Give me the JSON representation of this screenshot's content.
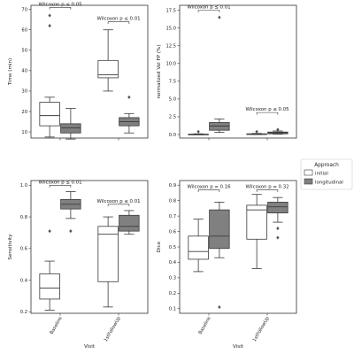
{
  "chart_data": [
    {
      "type": "box",
      "categories": [
        "Baseline",
        "1stFollowUp"
      ],
      "xlabel": "",
      "ylabel": "Time (min)",
      "ylim": [
        7,
        72
      ],
      "yticks": [
        10,
        20,
        30,
        40,
        50,
        60,
        70
      ],
      "show_xticklabels": false,
      "series": [
        {
          "name": "initial",
          "boxes": [
            {
              "whislo": 7.5,
              "q1": 13,
              "med": 18,
              "q3": 24.5,
              "whishi": 27,
              "fliers": [
                62,
                67
              ]
            },
            {
              "whislo": 30,
              "q1": 36.5,
              "med": 38,
              "q3": 45,
              "whishi": 60,
              "fliers": []
            }
          ]
        },
        {
          "name": "longitudinal",
          "boxes": [
            {
              "whislo": 6.5,
              "q1": 9.5,
              "med": 12,
              "q3": 14,
              "whishi": 21.5,
              "fliers": []
            },
            {
              "whislo": 9.5,
              "q1": 13,
              "med": 15,
              "q3": 17,
              "whishi": 19,
              "fliers": [
                27
              ]
            }
          ]
        }
      ],
      "annotations": [
        {
          "category": "Baseline",
          "text": "Wilcoxon p ≤ 0.05",
          "y": 71
        },
        {
          "category": "1stFollowUp",
          "text": "Wilcoxon p ≤ 0.01",
          "y": 64
        }
      ]
    },
    {
      "type": "box",
      "categories": [
        "Baseline",
        "1stFollowUp"
      ],
      "xlabel": "",
      "ylabel": "normalized Vol FP (%)",
      "ylim": [
        -0.5,
        18.2
      ],
      "yticks": [
        0.0,
        2.5,
        5.0,
        7.5,
        10.0,
        12.5,
        15.0,
        17.5
      ],
      "show_xticklabels": false,
      "series": [
        {
          "name": "initial",
          "boxes": [
            {
              "whislo": 0,
              "q1": 0,
              "med": 0,
              "q3": 0.05,
              "whishi": 0.1,
              "fliers": [
                0.4
              ]
            },
            {
              "whislo": 0,
              "q1": 0,
              "med": 0.05,
              "q3": 0.1,
              "whishi": 0.15,
              "fliers": [
                0.4
              ]
            }
          ]
        },
        {
          "name": "longitudinal",
          "boxes": [
            {
              "whislo": 0.3,
              "q1": 0.6,
              "med": 1.2,
              "q3": 1.7,
              "whishi": 2.2,
              "fliers": [
                16.5
              ]
            },
            {
              "whislo": 0.05,
              "q1": 0.1,
              "med": 0.25,
              "q3": 0.35,
              "whishi": 0.5,
              "fliers": [
                0.7
              ]
            }
          ]
        }
      ],
      "annotations": [
        {
          "category": "Baseline",
          "text": "Wilcoxon p ≤ 0.01",
          "y": 17.5
        },
        {
          "category": "1stFollowUp",
          "text": "Wilcoxon p ≤ 0.05",
          "y": 3.1
        }
      ]
    },
    {
      "type": "box",
      "categories": [
        "Baseline",
        "1stFollowUp"
      ],
      "xlabel": "Visit",
      "ylabel": "Sensitivity",
      "ylim": [
        0.19,
        1.03
      ],
      "yticks": [
        0.2,
        0.4,
        0.6,
        0.8,
        1.0
      ],
      "show_xticklabels": true,
      "series": [
        {
          "name": "initial",
          "boxes": [
            {
              "whislo": 0.21,
              "q1": 0.28,
              "med": 0.35,
              "q3": 0.44,
              "whishi": 0.52,
              "fliers": [
                0.71
              ]
            },
            {
              "whislo": 0.23,
              "q1": 0.39,
              "med": 0.69,
              "q3": 0.74,
              "whishi": 0.8,
              "fliers": []
            }
          ]
        },
        {
          "name": "longitudinal",
          "boxes": [
            {
              "whislo": 0.79,
              "q1": 0.85,
              "med": 0.88,
              "q3": 0.91,
              "whishi": 0.96,
              "fliers": [
                0.71
              ]
            },
            {
              "whislo": 0.69,
              "q1": 0.71,
              "med": 0.74,
              "q3": 0.81,
              "whishi": 0.84,
              "fliers": []
            }
          ]
        }
      ],
      "annotations": [
        {
          "category": "Baseline",
          "text": "Wilcoxon p ≤ 0.01",
          "y": 1.0
        },
        {
          "category": "1stFollowUp",
          "text": "Wilcoxon p ≤ 0.01",
          "y": 0.88
        }
      ]
    },
    {
      "type": "box",
      "categories": [
        "Baseline",
        "1stFollowUp"
      ],
      "xlabel": "Visit",
      "ylabel": "Dice",
      "ylim": [
        0.07,
        0.93
      ],
      "yticks": [
        0.1,
        0.2,
        0.3,
        0.4,
        0.5,
        0.6,
        0.7,
        0.8,
        0.9
      ],
      "show_xticklabels": true,
      "series": [
        {
          "name": "initial",
          "boxes": [
            {
              "whislo": 0.34,
              "q1": 0.42,
              "med": 0.47,
              "q3": 0.57,
              "whishi": 0.68,
              "fliers": []
            },
            {
              "whislo": 0.36,
              "q1": 0.55,
              "med": 0.74,
              "q3": 0.77,
              "whishi": 0.84,
              "fliers": []
            }
          ]
        },
        {
          "name": "longitudinal",
          "boxes": [
            {
              "whislo": 0.43,
              "q1": 0.49,
              "med": 0.57,
              "q3": 0.74,
              "whishi": 0.79,
              "fliers": [
                0.11
              ]
            },
            {
              "whislo": 0.66,
              "q1": 0.72,
              "med": 0.76,
              "q3": 0.79,
              "whishi": 0.82,
              "fliers": [
                0.56,
                0.62
              ]
            }
          ]
        }
      ],
      "annotations": [
        {
          "category": "Baseline",
          "text": "Wilcoxon p = 0.16",
          "y": 0.87
        },
        {
          "category": "1stFollowUp",
          "text": "Wilcoxon p = 0.32",
          "y": 0.87
        }
      ]
    }
  ],
  "legend": {
    "title": "Approach",
    "placement": "right",
    "entries": [
      {
        "label": "initial",
        "color": "#ffffff"
      },
      {
        "label": "longitudinal",
        "color": "#808080"
      }
    ]
  },
  "colors": {
    "initial": "#ffffff",
    "longitudinal": "#808080",
    "line": "#3a3a3a",
    "flier": "#555555"
  }
}
